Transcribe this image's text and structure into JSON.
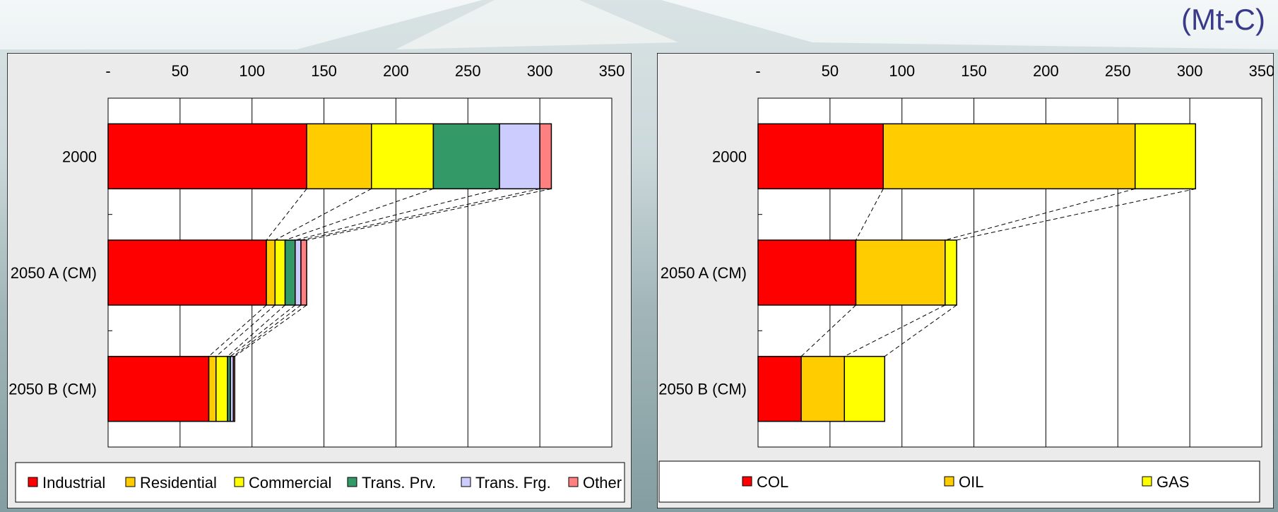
{
  "unit_label": "(Mt-C)",
  "chart_data": [
    {
      "type": "bar",
      "orientation": "horizontal",
      "stacked": true,
      "categories": [
        "2000",
        "2050 A (CM)",
        "2050 B (CM)"
      ],
      "xlim": [
        0,
        350
      ],
      "xticks": [
        "-",
        "50",
        "100",
        "150",
        "200",
        "250",
        "300",
        "350"
      ],
      "xtick_values": [
        0,
        50,
        100,
        150,
        200,
        250,
        300,
        350
      ],
      "x_axis_position": "top",
      "grid": true,
      "legend_position": "bottom",
      "connector_lines": "dashed",
      "series": [
        {
          "name": "Industrial",
          "color": "#ff0000",
          "values": [
            138,
            110,
            70
          ]
        },
        {
          "name": "Residential",
          "color": "#ffcc00",
          "values": [
            45,
            6,
            5
          ]
        },
        {
          "name": "Commercial",
          "color": "#ffff00",
          "values": [
            43,
            7,
            8
          ]
        },
        {
          "name": "Trans. Prv.",
          "color": "#339966",
          "values": [
            46,
            7,
            2
          ]
        },
        {
          "name": "Trans. Frg.",
          "color": "#ccccff",
          "values": [
            28,
            4,
            2
          ]
        },
        {
          "name": "Other",
          "color": "#ff8080",
          "values": [
            8,
            4,
            1
          ]
        }
      ]
    },
    {
      "type": "bar",
      "orientation": "horizontal",
      "stacked": true,
      "categories": [
        "2000",
        "2050 A (CM)",
        "2050 B (CM)"
      ],
      "xlim": [
        0,
        350
      ],
      "xticks": [
        "-",
        "50",
        "100",
        "150",
        "200",
        "250",
        "300",
        "350"
      ],
      "xtick_values": [
        0,
        50,
        100,
        150,
        200,
        250,
        300,
        350
      ],
      "x_axis_position": "top",
      "grid": true,
      "legend_position": "bottom",
      "connector_lines": "dashed",
      "series": [
        {
          "name": "COL",
          "color": "#ff0000",
          "values": [
            87,
            68,
            30
          ]
        },
        {
          "name": "OIL",
          "color": "#ffcc00",
          "values": [
            175,
            62,
            30
          ]
        },
        {
          "name": "GAS",
          "color": "#ffff00",
          "values": [
            42,
            8,
            28
          ]
        }
      ]
    }
  ]
}
